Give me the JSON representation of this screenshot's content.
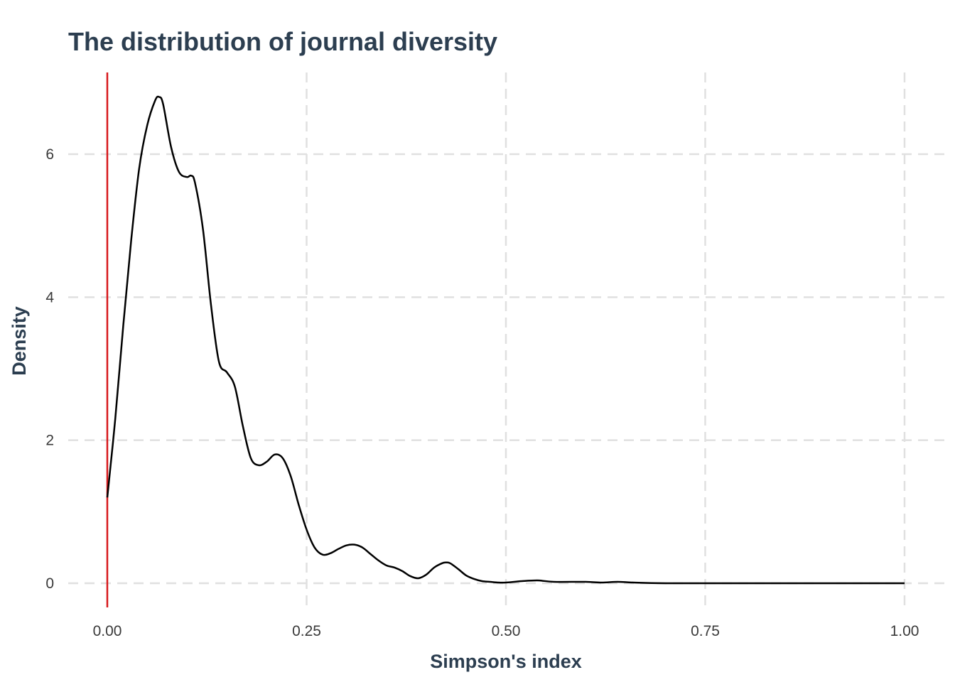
{
  "title": "The distribution of journal diversity",
  "chart_data": {
    "type": "area",
    "title": "The distribution of journal diversity",
    "xlabel": "Simpson's index",
    "ylabel": "Density",
    "xlim": [
      0.0,
      1.0
    ],
    "ylim": [
      0,
      7
    ],
    "xticks": [
      0.0,
      0.25,
      0.5,
      0.75,
      1.0
    ],
    "xtick_labels": [
      "0.00",
      "0.25",
      "0.50",
      "0.75",
      "1.00"
    ],
    "yticks": [
      0,
      2,
      4,
      6
    ],
    "ytick_labels": [
      "0",
      "2",
      "4",
      "6"
    ],
    "grid": "dashed",
    "reference_line": {
      "x": 0.0,
      "color": "#d7191c"
    },
    "line_color": "#000000",
    "x": [
      0.0,
      0.01,
      0.02,
      0.03,
      0.04,
      0.05,
      0.06,
      0.065,
      0.07,
      0.08,
      0.09,
      0.1,
      0.105,
      0.11,
      0.12,
      0.13,
      0.14,
      0.15,
      0.16,
      0.17,
      0.18,
      0.19,
      0.2,
      0.21,
      0.22,
      0.23,
      0.24,
      0.25,
      0.26,
      0.27,
      0.28,
      0.29,
      0.3,
      0.31,
      0.32,
      0.33,
      0.34,
      0.35,
      0.36,
      0.37,
      0.38,
      0.39,
      0.4,
      0.41,
      0.42,
      0.425,
      0.43,
      0.44,
      0.45,
      0.46,
      0.47,
      0.48,
      0.49,
      0.5,
      0.52,
      0.54,
      0.56,
      0.6,
      0.62,
      0.64,
      0.66,
      0.7,
      0.8,
      0.9,
      1.0
    ],
    "y": [
      1.2,
      2.3,
      3.6,
      4.8,
      5.8,
      6.4,
      6.75,
      6.8,
      6.7,
      6.1,
      5.75,
      5.68,
      5.7,
      5.6,
      4.95,
      3.9,
      3.1,
      2.95,
      2.75,
      2.2,
      1.75,
      1.65,
      1.7,
      1.8,
      1.75,
      1.5,
      1.1,
      0.75,
      0.5,
      0.4,
      0.42,
      0.48,
      0.53,
      0.54,
      0.5,
      0.41,
      0.32,
      0.25,
      0.22,
      0.17,
      0.1,
      0.07,
      0.12,
      0.22,
      0.28,
      0.29,
      0.28,
      0.2,
      0.11,
      0.06,
      0.03,
      0.02,
      0.01,
      0.01,
      0.03,
      0.04,
      0.02,
      0.02,
      0.01,
      0.02,
      0.01,
      0.0,
      0.0,
      0.0,
      0.0
    ]
  }
}
